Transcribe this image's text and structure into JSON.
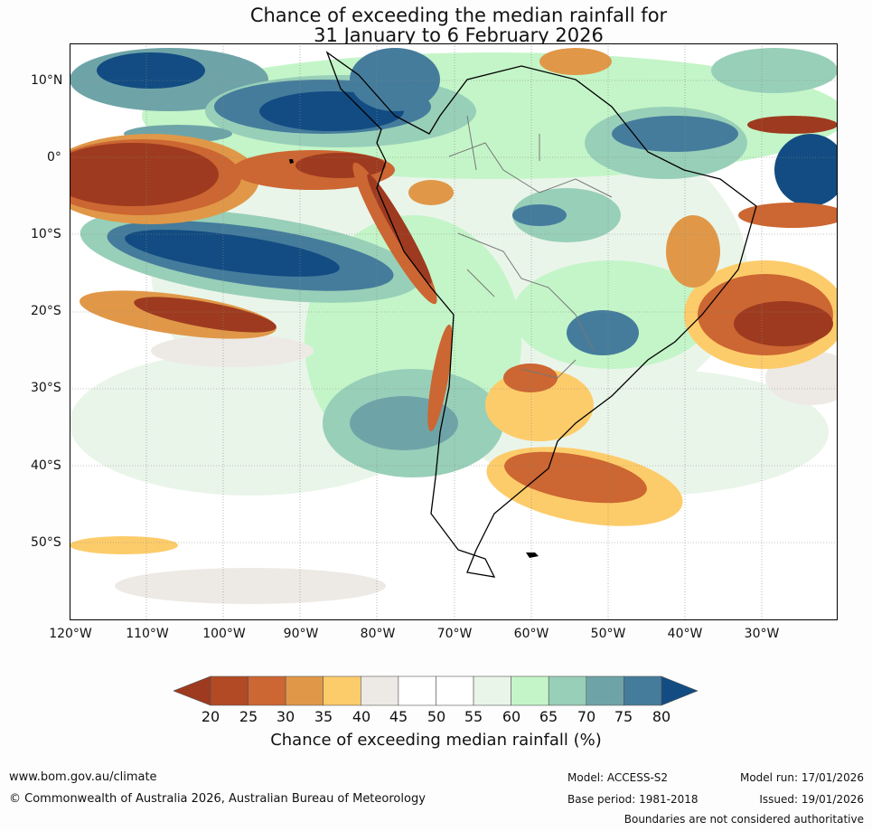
{
  "title": {
    "line1": "Chance of exceeding the median rainfall for",
    "line2": "31 January to 6 February 2026"
  },
  "lat_labels": [
    "10°N",
    "0°",
    "10°S",
    "20°S",
    "30°S",
    "40°S",
    "50°S"
  ],
  "lon_labels": [
    "120°W",
    "110°W",
    "100°W",
    "90°W",
    "80°W",
    "70°W",
    "60°W",
    "50°W",
    "40°W",
    "30°W"
  ],
  "legend": {
    "title": "Chance of exceeding median rainfall (%)",
    "ticks": [
      "20",
      "25",
      "30",
      "35",
      "40",
      "45",
      "50",
      "55",
      "60",
      "65",
      "70",
      "75",
      "80"
    ],
    "colors": [
      "#9e3a1f",
      "#b24a25",
      "#cc6632",
      "#e09848",
      "#fdcc6a",
      "#edeae5",
      "#ffffff",
      "#ffffff",
      "#eaf5ea",
      "#c4f5c8",
      "#98cfb8",
      "#6ea4a8",
      "#457c9c",
      "#124c82"
    ]
  },
  "footer": {
    "website": "www.bom.gov.au/climate",
    "copyright": "© Commonwealth of Australia 2026, Australian Bureau of Meteorology",
    "model": "Model: ACCESS-S2",
    "base_period": "Base period: 1981-2018",
    "model_run": "Model run: 17/01/2026",
    "issued": "Issued: 19/01/2026",
    "disclaimer": "Boundaries are not considered authoritative"
  }
}
